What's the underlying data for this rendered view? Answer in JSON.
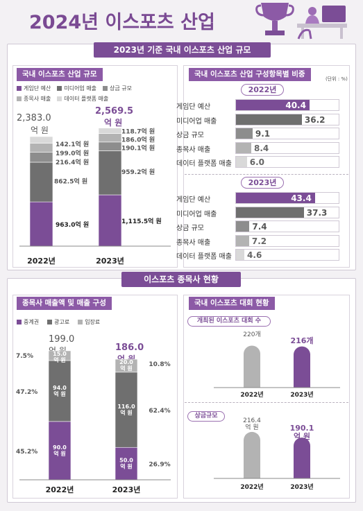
{
  "page": {
    "title": "2024년 이스포츠 산업"
  },
  "section1": {
    "banner": "2023년 기준 국내 이스포츠 산업 규모",
    "scale": {
      "tag": "국내 이스포츠 산업 규모",
      "legend": [
        "게임단 예산",
        "미디어업 매출",
        "상금 규모",
        "종목사 매출",
        "데이터 플랫폼 매출"
      ],
      "totals": [
        "2,383.0",
        "2,569.5"
      ],
      "total_unit": "억 원"
    },
    "ratio": {
      "tag": "국내 이스포츠 산업 구성항목별 비중",
      "unit": "(단위 : %)",
      "pills": [
        "2022년",
        "2023년"
      ]
    }
  },
  "section2": {
    "banner": "이스포츠 종목사 현황",
    "sales": {
      "tag": "종목사 매출액 및 매출 구성",
      "legend": [
        "중계권",
        "광고료",
        "입장료"
      ],
      "totals": [
        "199.0",
        "186.0"
      ],
      "total_unit": "억 원"
    },
    "tournaments": {
      "tag": "국내 이스포츠 대회 현황",
      "count_pill": "개최된 이스포츠 대회 수",
      "prize_pill": "상금규모"
    }
  },
  "colors": {
    "purple": "#7b4d96",
    "dark_gray": "#6f6f6f",
    "mid_gray": "#8d8d8d",
    "light_gray": "#b3b3b3",
    "pale_gray": "#d9d9d9"
  },
  "icons": [
    "trophy-icon",
    "gamer-at-desk-icon"
  ],
  "chart_data": [
    {
      "type": "bar",
      "name": "industry-scale",
      "categories": [
        "2022년",
        "2023년"
      ],
      "series": [
        {
          "name": "게임단 예산",
          "values": [
            963.0,
            1115.5
          ],
          "labels": [
            "963.0억 원",
            "1,115.5억 원"
          ]
        },
        {
          "name": "미디어업 매출",
          "values": [
            862.5,
            959.2
          ],
          "labels": [
            "862.5억 원",
            "959.2억 원"
          ]
        },
        {
          "name": "상금 규모",
          "values": [
            216.4,
            190.1
          ],
          "labels": [
            "216.4억 원",
            "190.1억 원"
          ]
        },
        {
          "name": "종목사 매출",
          "values": [
            199.0,
            186.0
          ],
          "labels": [
            "199.0억 원",
            "186.0억 원"
          ]
        },
        {
          "name": "데이터 플랫폼 매출",
          "values": [
            142.1,
            118.7
          ],
          "labels": [
            "142.1억 원",
            "118.7억 원"
          ]
        }
      ],
      "totals": [
        2383.0,
        2569.5
      ],
      "ylim": [
        0,
        2700
      ]
    },
    {
      "type": "bar",
      "name": "composition-2022",
      "orientation": "horizontal",
      "categories": [
        "게임단 예산",
        "미디어업 매출",
        "상금 규모",
        "종목사 매출",
        "데이터 플랫폼 매출"
      ],
      "values": [
        40.4,
        36.2,
        9.1,
        8.4,
        6.0
      ],
      "labels": [
        "40.4",
        "36.2",
        "9.1",
        "8.4",
        "6.0"
      ],
      "xlim": [
        0,
        45
      ]
    },
    {
      "type": "bar",
      "name": "composition-2023",
      "orientation": "horizontal",
      "categories": [
        "게임단 예산",
        "미디어업 매출",
        "상금 규모",
        "종목사 매출",
        "데이터 플랫폼 매출"
      ],
      "values": [
        43.4,
        37.3,
        7.4,
        7.2,
        4.6
      ],
      "labels": [
        "43.4",
        "37.3",
        "7.4",
        "7.2",
        "4.6"
      ],
      "xlim": [
        0,
        45
      ]
    },
    {
      "type": "bar",
      "name": "publisher-sales",
      "categories": [
        "2022년",
        "2023년"
      ],
      "series": [
        {
          "name": "중계권",
          "values": [
            90.0,
            50.0
          ],
          "labels": [
            "90.0\n억 원",
            "50.0\n억 원"
          ],
          "pct": [
            "45.2%",
            "26.9%"
          ]
        },
        {
          "name": "광고료",
          "values": [
            94.0,
            116.0
          ],
          "labels": [
            "94.0\n억 원",
            "116.0\n억 원"
          ],
          "pct": [
            "47.2%",
            "62.4%"
          ]
        },
        {
          "name": "입장료",
          "values": [
            15.0,
            20.0
          ],
          "labels": [
            "15.0\n억 원",
            "20.0\n억 원"
          ],
          "pct": [
            "7.5%",
            "10.8%"
          ]
        }
      ],
      "totals": [
        199.0,
        186.0
      ],
      "ylim": [
        0,
        200
      ]
    },
    {
      "type": "bar",
      "name": "tournament-count",
      "categories": [
        "2022년",
        "2023년"
      ],
      "values": [
        220,
        216
      ],
      "labels": [
        "220개",
        "216개"
      ],
      "ylim": [
        0,
        240
      ]
    },
    {
      "type": "bar",
      "name": "prize-scale",
      "categories": [
        "2022년",
        "2023년"
      ],
      "values": [
        216.4,
        190.1
      ],
      "labels": [
        "216.4\n억 원",
        "190.1\n억 원"
      ],
      "ylim": [
        0,
        230
      ]
    }
  ]
}
